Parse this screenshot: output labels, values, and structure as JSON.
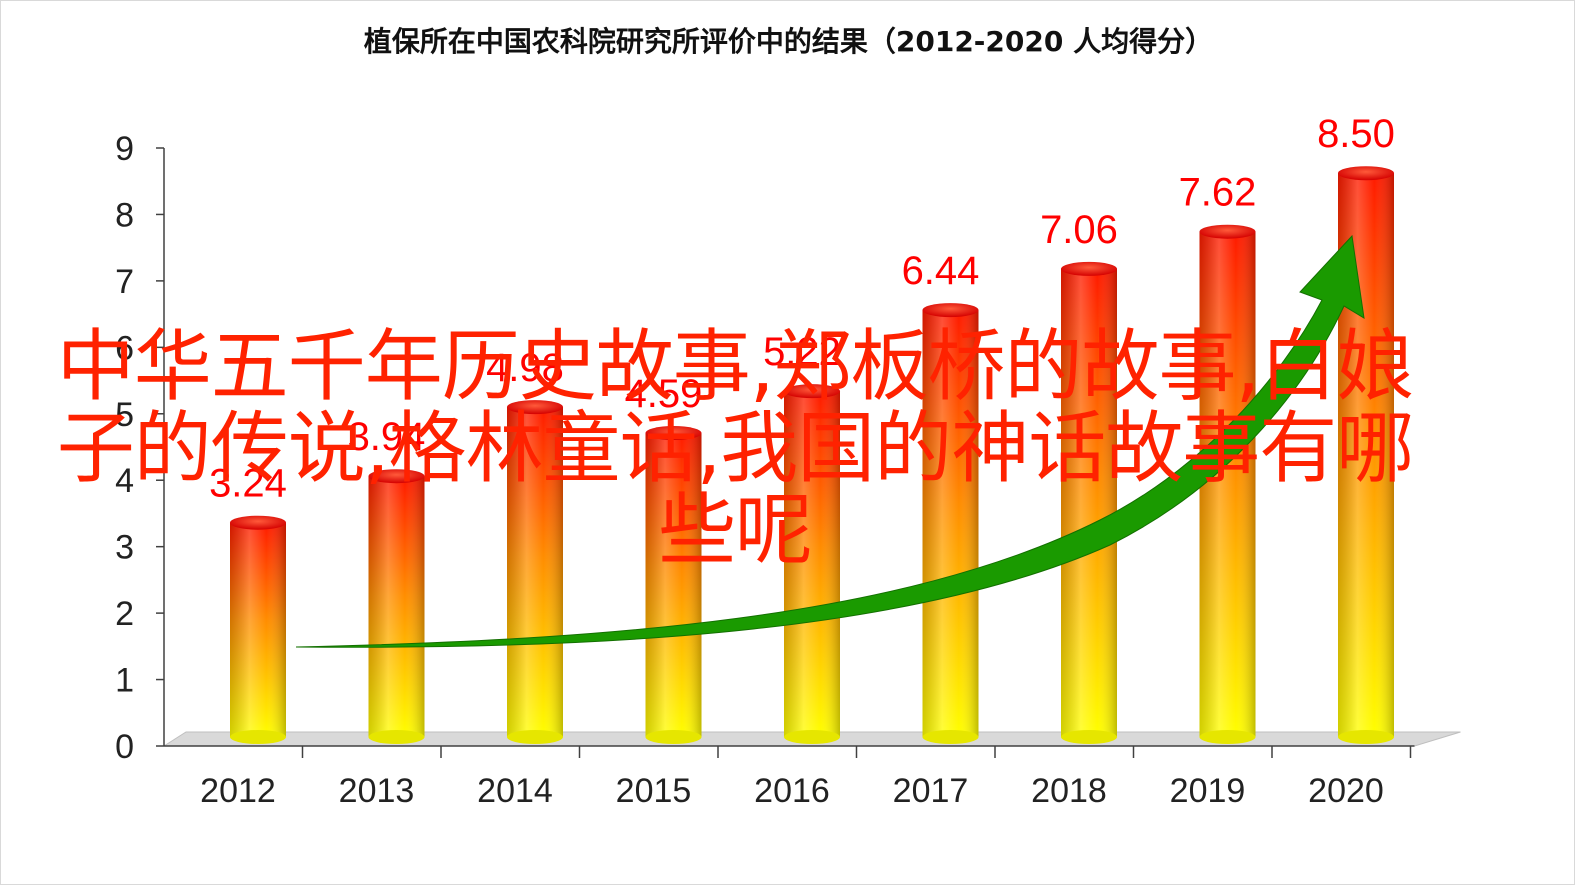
{
  "chart_data": {
    "type": "bar",
    "title": "植保所在中国农科院研究所评价中的结果（2012-2020  人均得分）",
    "categories": [
      "2012",
      "2013",
      "2014",
      "2015",
      "2016",
      "2017",
      "2018",
      "2019",
      "2020"
    ],
    "series": [
      {
        "values": [
          3.24,
          3.94,
          4.98,
          4.59,
          5.22,
          6.44,
          7.06,
          7.62,
          8.5
        ],
        "data_labels": [
          "3.24",
          "3.94",
          "4.98",
          "4.59",
          "5.22",
          "6.44",
          "7.06",
          "7.62",
          "8.50"
        ]
      }
    ],
    "y_ticks": [
      "0",
      "1",
      "2",
      "3",
      "4",
      "5",
      "6",
      "7",
      "8",
      "9"
    ],
    "ylim": [
      0,
      9
    ],
    "xlabel": "",
    "ylabel": "",
    "grid": false,
    "bar_style": "3d-cylinder",
    "bar_gradient": [
      "#ff1a00",
      "#ff8c00",
      "#ffff00"
    ],
    "label_color": "#ff0000",
    "trend_arrow_color": "#1a9a00"
  },
  "overlay_caption": "中华五千年历史故事,郑板桥的故事,白娘子的传说,格林童话,我国的神话故事有哪些呢",
  "colors": {
    "caption": "#ff2200",
    "axis": "#404040",
    "floor": "#d9d9d9"
  }
}
